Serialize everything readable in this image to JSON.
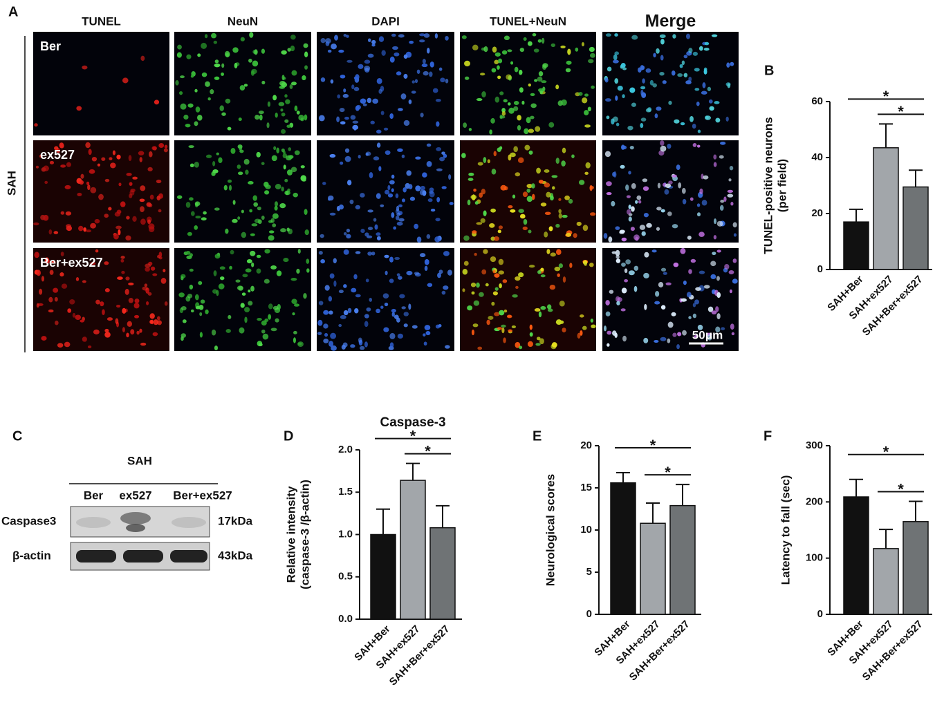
{
  "panel_a": {
    "label": "A",
    "columns": [
      "TUNEL",
      "NeuN",
      "DAPI",
      "TUNEL+NeuN",
      "Merge"
    ],
    "rows": [
      "Ber",
      "ex527",
      "Ber+ex527"
    ],
    "group": "SAH",
    "scale_bar": "50μm"
  },
  "panel_c": {
    "label": "C",
    "group": "SAH",
    "lanes": [
      "Ber",
      "ex527",
      "Ber+ex527"
    ],
    "bands": [
      {
        "name": "Caspase3",
        "size": "17kDa"
      },
      {
        "name": "β-actin",
        "size": "43kDa"
      }
    ]
  },
  "chart_data": [
    {
      "type": "bar",
      "panel": "B",
      "ylabel": [
        "TUNEL-positive neurons",
        "(per field)"
      ],
      "categories": [
        "SAH+Ber",
        "SAH+ex527",
        "SAH+Ber+ex527"
      ],
      "values": [
        17,
        43.5,
        29.5
      ],
      "errors": [
        4.5,
        8.5,
        6
      ],
      "colors": [
        "#111111",
        "#a2a6aa",
        "#6f7375"
      ],
      "ylim": [
        0,
        60
      ],
      "yticks": [
        0,
        20,
        40,
        60
      ],
      "annotations": [
        "*",
        "*"
      ]
    },
    {
      "type": "bar",
      "panel": "D",
      "title": "Caspase-3",
      "ylabel": [
        "Relative intensity",
        "(caspase-3 /β-actin)"
      ],
      "categories": [
        "SAH+Ber",
        "SAH+ex527",
        "SAH+Ber+ex527"
      ],
      "values": [
        1.0,
        1.64,
        1.08
      ],
      "errors": [
        0.3,
        0.2,
        0.26
      ],
      "colors": [
        "#111111",
        "#a2a6aa",
        "#6f7375"
      ],
      "ylim": [
        0,
        2
      ],
      "yticks": [
        {
          "value": 0,
          "label": "0.0"
        },
        {
          "value": 0.5,
          "label": "0.5"
        },
        {
          "value": 1,
          "label": "1.0"
        },
        {
          "value": 1.5,
          "label": "1.5"
        },
        {
          "value": 2,
          "label": "2.0"
        }
      ],
      "annotations": [
        "*",
        "*"
      ]
    },
    {
      "type": "bar",
      "panel": "E",
      "ylabel": [
        "Neurological scores"
      ],
      "categories": [
        "SAH+Ber",
        "SAH+ex527",
        "SAH+Ber+ex527"
      ],
      "values": [
        15.6,
        10.8,
        12.9
      ],
      "errors": [
        1.2,
        2.4,
        2.5
      ],
      "colors": [
        "#111111",
        "#a2a6aa",
        "#6f7375"
      ],
      "ylim": [
        0,
        20
      ],
      "yticks": [
        0,
        5,
        10,
        15,
        20
      ],
      "annotations": [
        "*",
        "*"
      ]
    },
    {
      "type": "bar",
      "panel": "F",
      "ylabel": [
        "Latency to fall (sec)"
      ],
      "categories": [
        "SAH+Ber",
        "SAH+ex527",
        "SAH+Ber+ex527"
      ],
      "values": [
        209,
        117,
        165
      ],
      "errors": [
        31,
        34,
        36
      ],
      "colors": [
        "#111111",
        "#a2a6aa",
        "#6f7375"
      ],
      "ylim": [
        0,
        300
      ],
      "yticks": [
        0,
        100,
        200,
        300
      ],
      "annotations": [
        "*",
        "*"
      ]
    }
  ]
}
